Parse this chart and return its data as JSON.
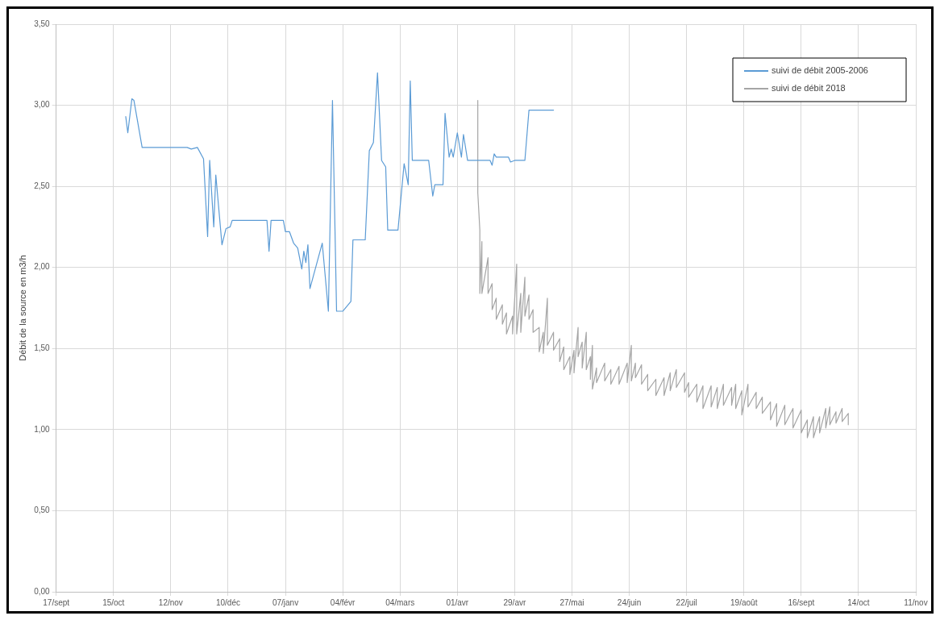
{
  "chart_data": {
    "type": "line",
    "ylabel": "Débit de la source en m3/h",
    "xlim": [
      "2005-09-17",
      "2006-11-11"
    ],
    "xticks": [
      {
        "value": "2005-09-17",
        "label": "17/sept"
      },
      {
        "value": "2005-10-15",
        "label": "15/oct"
      },
      {
        "value": "2005-11-12",
        "label": "12/nov"
      },
      {
        "value": "2005-12-10",
        "label": "10/déc"
      },
      {
        "value": "2006-01-07",
        "label": "07/janv"
      },
      {
        "value": "2006-02-04",
        "label": "04/févr"
      },
      {
        "value": "2006-03-04",
        "label": "04/mars"
      },
      {
        "value": "2006-04-01",
        "label": "01/avr"
      },
      {
        "value": "2006-04-29",
        "label": "29/avr"
      },
      {
        "value": "2006-05-27",
        "label": "27/mai"
      },
      {
        "value": "2006-06-24",
        "label": "24/juin"
      },
      {
        "value": "2006-07-22",
        "label": "22/juil"
      },
      {
        "value": "2006-08-19",
        "label": "19/août"
      },
      {
        "value": "2006-09-16",
        "label": "16/sept"
      },
      {
        "value": "2006-10-14",
        "label": "14/oct"
      },
      {
        "value": "2006-11-11",
        "label": "11/nov"
      }
    ],
    "ylim": [
      0,
      3.5
    ],
    "yticks": [
      {
        "value": 0,
        "label": "0,00"
      },
      {
        "value": 0.5,
        "label": "0,50"
      },
      {
        "value": 1,
        "label": "1,00"
      },
      {
        "value": 1.5,
        "label": "1,50"
      },
      {
        "value": 2,
        "label": "2,00"
      },
      {
        "value": 2.5,
        "label": "2,50"
      },
      {
        "value": 3,
        "label": "3,00"
      },
      {
        "value": 3.5,
        "label": "3,50"
      }
    ],
    "grid": true,
    "legend": "top right",
    "marker": "none",
    "series": [
      {
        "name": "suivi de débit 2005-2006",
        "color": "#5b9bd5",
        "x": [
          "2005-10-21",
          "2005-10-22",
          "2005-10-24",
          "2005-10-25",
          "2005-10-29",
          "2005-11-20",
          "2005-11-22",
          "2005-11-25",
          "2005-11-28",
          "2005-11-30",
          "2005-12-01",
          "2005-12-03",
          "2005-12-04",
          "2005-12-07",
          "2005-12-09",
          "2005-12-11",
          "2005-12-12",
          "2005-12-29",
          "2005-12-30",
          "2005-12-31",
          "2006-01-06",
          "2006-01-07",
          "2006-01-09",
          "2006-01-11",
          "2006-01-13",
          "2006-01-15",
          "2006-01-16",
          "2006-01-17",
          "2006-01-18",
          "2006-01-19",
          "2006-01-25",
          "2006-01-28",
          "2006-01-30",
          "2006-02-01",
          "2006-02-04",
          "2006-02-08",
          "2006-02-09",
          "2006-02-15",
          "2006-02-17",
          "2006-02-19",
          "2006-02-21",
          "2006-02-23",
          "2006-02-25",
          "2006-02-26",
          "2006-03-03",
          "2006-03-06",
          "2006-03-08",
          "2006-03-09",
          "2006-03-10",
          "2006-03-18",
          "2006-03-20",
          "2006-03-21",
          "2006-03-25",
          "2006-03-26",
          "2006-03-28",
          "2006-03-29",
          "2006-03-30",
          "2006-04-01",
          "2006-04-03",
          "2006-04-04",
          "2006-04-06",
          "2006-04-17",
          "2006-04-18",
          "2006-04-19",
          "2006-04-20",
          "2006-04-26",
          "2006-04-27",
          "2006-04-29",
          "2006-05-04",
          "2006-05-06",
          "2006-05-18"
        ],
        "values": [
          2.93,
          2.83,
          3.04,
          3.03,
          2.74,
          2.74,
          2.73,
          2.74,
          2.67,
          2.19,
          2.66,
          2.25,
          2.57,
          2.14,
          2.24,
          2.25,
          2.29,
          2.29,
          2.1,
          2.29,
          2.29,
          2.22,
          2.22,
          2.15,
          2.12,
          1.99,
          2.1,
          2.03,
          2.14,
          1.87,
          2.15,
          1.73,
          3.03,
          1.73,
          1.73,
          1.79,
          2.17,
          2.17,
          2.72,
          2.77,
          3.2,
          2.66,
          2.62,
          2.23,
          2.23,
          2.64,
          2.51,
          3.15,
          2.66,
          2.66,
          2.44,
          2.51,
          2.51,
          2.95,
          2.68,
          2.73,
          2.68,
          2.83,
          2.68,
          2.82,
          2.66,
          2.66,
          2.63,
          2.7,
          2.68,
          2.68,
          2.65,
          2.66,
          2.66,
          2.97,
          2.97
        ]
      },
      {
        "name": "suivi de débit 2018",
        "color": "#a5a5a5",
        "x": [
          "2006-04-11",
          "2006-04-11",
          "2006-04-12",
          "2006-04-12",
          "2006-04-13",
          "2006-04-13",
          "2006-04-16",
          "2006-04-16",
          "2006-04-18",
          "2006-04-18",
          "2006-04-20",
          "2006-04-20",
          "2006-04-23",
          "2006-04-23",
          "2006-04-25",
          "2006-04-25",
          "2006-04-28",
          "2006-04-28",
          "2006-04-30",
          "2006-04-30",
          "2006-05-02",
          "2006-05-02",
          "2006-05-04",
          "2006-05-04",
          "2006-05-06",
          "2006-05-06",
          "2006-05-08",
          "2006-05-08",
          "2006-05-11",
          "2006-05-11",
          "2006-05-13",
          "2006-05-13",
          "2006-05-15",
          "2006-05-15",
          "2006-05-18",
          "2006-05-18",
          "2006-05-21",
          "2006-05-21",
          "2006-05-23",
          "2006-05-23",
          "2006-05-26",
          "2006-05-26",
          "2006-05-28",
          "2006-05-28",
          "2006-05-30",
          "2006-05-30",
          "2006-06-01",
          "2006-06-01",
          "2006-06-03",
          "2006-06-03",
          "2006-06-05",
          "2006-06-05",
          "2006-06-06",
          "2006-06-06",
          "2006-06-08",
          "2006-06-08",
          "2006-06-12",
          "2006-06-12",
          "2006-06-15",
          "2006-06-15",
          "2006-06-19",
          "2006-06-19",
          "2006-06-23",
          "2006-06-23",
          "2006-06-25",
          "2006-06-25",
          "2006-06-27",
          "2006-06-27",
          "2006-06-30",
          "2006-06-30",
          "2006-07-03",
          "2006-07-03",
          "2006-07-07",
          "2006-07-07",
          "2006-07-11",
          "2006-07-11",
          "2006-07-14",
          "2006-07-14",
          "2006-07-17",
          "2006-07-17",
          "2006-07-21",
          "2006-07-21",
          "2006-07-23",
          "2006-07-23",
          "2006-07-27",
          "2006-07-27",
          "2006-07-30",
          "2006-07-30",
          "2006-08-03",
          "2006-08-03",
          "2006-08-06",
          "2006-08-06",
          "2006-08-09",
          "2006-08-09",
          "2006-08-13",
          "2006-08-13",
          "2006-08-15",
          "2006-08-15",
          "2006-08-18",
          "2006-08-18",
          "2006-08-21",
          "2006-08-21",
          "2006-08-25",
          "2006-08-25",
          "2006-08-28",
          "2006-08-28",
          "2006-09-01",
          "2006-09-01",
          "2006-09-04",
          "2006-09-04",
          "2006-09-08",
          "2006-09-08",
          "2006-09-12",
          "2006-09-12",
          "2006-09-16",
          "2006-09-16",
          "2006-09-19",
          "2006-09-19",
          "2006-09-22",
          "2006-09-22",
          "2006-09-25",
          "2006-09-25",
          "2006-09-28",
          "2006-09-28",
          "2006-09-30",
          "2006-09-30",
          "2006-10-03",
          "2006-10-03",
          "2006-10-06",
          "2006-10-06",
          "2006-10-09",
          "2006-10-09"
        ],
        "values": [
          3.03,
          2.46,
          2.23,
          1.84,
          2.16,
          1.84,
          2.06,
          1.84,
          1.9,
          1.74,
          1.81,
          1.68,
          1.77,
          1.65,
          1.72,
          1.59,
          1.7,
          1.59,
          2.02,
          1.59,
          1.84,
          1.6,
          1.94,
          1.7,
          1.83,
          1.68,
          1.74,
          1.6,
          1.63,
          1.48,
          1.6,
          1.47,
          1.81,
          1.52,
          1.6,
          1.49,
          1.56,
          1.42,
          1.51,
          1.37,
          1.45,
          1.34,
          1.49,
          1.35,
          1.63,
          1.45,
          1.54,
          1.38,
          1.6,
          1.37,
          1.45,
          1.31,
          1.52,
          1.25,
          1.38,
          1.29,
          1.41,
          1.3,
          1.37,
          1.28,
          1.39,
          1.28,
          1.41,
          1.29,
          1.52,
          1.3,
          1.41,
          1.32,
          1.4,
          1.28,
          1.34,
          1.24,
          1.31,
          1.21,
          1.32,
          1.21,
          1.35,
          1.24,
          1.37,
          1.26,
          1.35,
          1.23,
          1.29,
          1.2,
          1.28,
          1.17,
          1.27,
          1.13,
          1.27,
          1.14,
          1.26,
          1.13,
          1.28,
          1.15,
          1.26,
          1.15,
          1.28,
          1.13,
          1.24,
          1.09,
          1.28,
          1.14,
          1.23,
          1.13,
          1.2,
          1.1,
          1.17,
          1.06,
          1.16,
          1.02,
          1.15,
          1.03,
          1.13,
          1.01,
          1.12,
          0.98,
          1.06,
          0.95,
          1.08,
          0.95,
          1.08,
          0.98,
          1.13,
          1.01,
          1.14,
          1.03,
          1.11,
          1.04,
          1.13,
          1.05,
          1.1,
          1.03
        ]
      }
    ]
  }
}
